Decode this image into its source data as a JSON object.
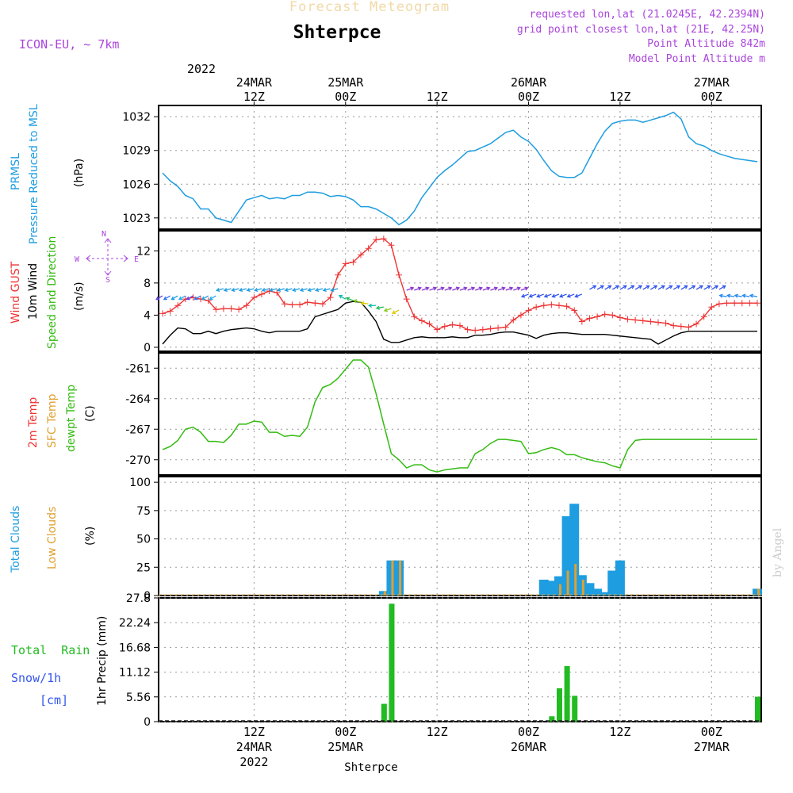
{
  "header": {
    "chart_title": "Forecast Meteogram",
    "station": "Shterpce",
    "model": "ICON-EU, ~ 7km",
    "requested": "requested lon,lat (21.0245E, 42.2394N)",
    "grid_point": "grid point closest lon,lat (21E, 42.25N)",
    "point_alt": "Point Altitude 842m",
    "model_alt": "Model Point Altitude m",
    "credit": "by Angel",
    "footer_station": "Shterpce"
  },
  "time_axis": {
    "year": "2022",
    "ticks_top": [
      {
        "h": 12,
        "date": "24MAR",
        "hour": "12Z"
      },
      {
        "h": 24,
        "date": "25MAR",
        "hour": "00Z"
      },
      {
        "h": 36,
        "date": "",
        "hour": "12Z"
      },
      {
        "h": 48,
        "date": "26MAR",
        "hour": "00Z"
      },
      {
        "h": 60,
        "date": "",
        "hour": "12Z"
      },
      {
        "h": 72,
        "date": "27MAR",
        "hour": "00Z"
      }
    ],
    "ticks_bottom": [
      {
        "h": 12,
        "hour": "12Z",
        "date": "24MAR",
        "year": "2022"
      },
      {
        "h": 24,
        "hour": "00Z",
        "date": "25MAR",
        "year": ""
      },
      {
        "h": 36,
        "hour": "12Z",
        "date": "",
        "year": ""
      },
      {
        "h": 48,
        "hour": "00Z",
        "date": "26MAR",
        "year": ""
      },
      {
        "h": 60,
        "hour": "12Z",
        "date": "",
        "year": ""
      },
      {
        "h": 72,
        "hour": "00Z",
        "date": "27MAR",
        "year": ""
      }
    ]
  },
  "colors": {
    "pressure": "#1e9de0",
    "gust": "#ee3333",
    "wind": "#000000",
    "dewpt": "#33bb11",
    "total_cloud": "#1e9de0",
    "low_cloud": "#e0a030",
    "precip": "#22bb22",
    "purple": "#aa44dd",
    "blue_lbl": "#3355ee"
  },
  "labels": {
    "prmsl": "PRMSL",
    "prmsl_long": "Pressure Reduced to MSL",
    "hpa": "(hPa)",
    "wind_gust": "Wind GUST",
    "wind10": "10m Wind",
    "speed_dir": "Speed and Direction",
    "ms": "(m/s)",
    "t2m": "2m Temp",
    "sfc": "SFC Temp",
    "dewpt": "dewpt Temp",
    "degc": "(C)",
    "total_clouds": "Total Clouds",
    "low_clouds": "Low Clouds",
    "pct": "(%)",
    "total_rain": "Total  Rain",
    "snow": "Snow/1h",
    "cm": "[cm]",
    "precip_axis": "1hr Precip (mm)",
    "compass_n": "N",
    "compass_s": "S",
    "compass_w": "W",
    "compass_e": "E"
  },
  "chart_data": [
    {
      "type": "line",
      "panel": "pressure",
      "ylabel": "Pressure Reduced to MSL (hPa)",
      "yticks": [
        1023,
        1026,
        1029,
        1032
      ],
      "ylim": [
        1022,
        1033
      ],
      "x_hours": [
        0,
        1,
        2,
        3,
        4,
        5,
        6,
        7,
        8,
        9,
        10,
        11,
        12,
        13,
        14,
        15,
        16,
        17,
        18,
        19,
        20,
        21,
        22,
        23,
        24,
        25,
        26,
        27,
        28,
        29,
        30,
        31,
        32,
        33,
        34,
        35,
        36,
        37,
        38,
        39,
        40,
        41,
        42,
        43,
        44,
        45,
        46,
        47,
        48,
        49,
        50,
        51,
        52,
        53,
        54,
        55,
        56,
        57,
        58,
        59,
        60,
        61,
        62,
        63,
        64,
        65,
        66,
        67,
        68,
        69,
        70,
        71,
        72,
        73,
        74,
        75,
        76,
        77,
        78
      ],
      "values": [
        1027.0,
        1026.3,
        1025.8,
        1025.0,
        1024.7,
        1023.8,
        1023.8,
        1023.0,
        1022.8,
        1022.6,
        1023.6,
        1024.6,
        1024.8,
        1025.0,
        1024.7,
        1024.8,
        1024.7,
        1025.0,
        1025.0,
        1025.3,
        1025.3,
        1025.2,
        1024.9,
        1025.0,
        1024.9,
        1024.6,
        1024.0,
        1024.0,
        1023.8,
        1023.4,
        1023.0,
        1022.4,
        1022.8,
        1023.6,
        1024.8,
        1025.7,
        1026.6,
        1027.2,
        1027.7,
        1028.3,
        1028.9,
        1029.0,
        1029.3,
        1029.6,
        1030.1,
        1030.6,
        1030.8,
        1030.2,
        1029.8,
        1029.1,
        1028.1,
        1027.2,
        1026.7,
        1026.6,
        1026.6,
        1027.0,
        1028.3,
        1029.6,
        1030.7,
        1031.4,
        1031.6,
        1031.7,
        1031.7,
        1031.5,
        1031.7,
        1031.9,
        1032.1,
        1032.4,
        1031.8,
        1030.2,
        1029.6,
        1029.4,
        1029.0,
        1028.7,
        1028.5,
        1028.3,
        1028.2,
        1028.1,
        1028.0
      ],
      "series_color_key": "pressure"
    },
    {
      "type": "line",
      "panel": "wind",
      "ylabel": "(m/s)",
      "yticks": [
        0,
        4,
        8,
        12
      ],
      "ylim": [
        -0.5,
        14.5
      ],
      "x_hours": [
        0,
        1,
        2,
        3,
        4,
        5,
        6,
        7,
        8,
        9,
        10,
        11,
        12,
        13,
        14,
        15,
        16,
        17,
        18,
        19,
        20,
        21,
        22,
        23,
        24,
        25,
        26,
        27,
        28,
        29,
        30,
        31,
        32,
        33,
        34,
        35,
        36,
        37,
        38,
        39,
        40,
        41,
        42,
        43,
        44,
        45,
        46,
        47,
        48,
        49,
        50,
        51,
        52,
        53,
        54,
        55,
        56,
        57,
        58,
        59,
        60,
        61,
        62,
        63,
        64,
        65,
        66,
        67,
        68,
        69,
        70,
        71,
        72,
        73,
        74,
        75,
        76,
        77,
        78
      ],
      "series": [
        {
          "name": "Wind GUST",
          "color_key": "gust",
          "values": [
            4.2,
            4.5,
            5.2,
            6.0,
            6.2,
            6.0,
            5.8,
            4.7,
            4.8,
            4.8,
            4.7,
            5.2,
            6.2,
            6.6,
            7.0,
            6.8,
            5.4,
            5.3,
            5.3,
            5.6,
            5.5,
            5.4,
            6.2,
            9.0,
            10.4,
            10.6,
            11.5,
            12.3,
            13.4,
            13.5,
            12.7,
            9.0,
            6.0,
            3.8,
            3.3,
            2.9,
            2.2,
            2.6,
            2.8,
            2.7,
            2.2,
            2.1,
            2.2,
            2.3,
            2.4,
            2.5,
            3.4,
            4.0,
            4.6,
            5.0,
            5.2,
            5.3,
            5.2,
            5.1,
            4.6,
            3.2,
            3.6,
            3.8,
            4.1,
            4.0,
            3.7,
            3.5,
            3.4,
            3.3,
            3.2,
            3.1,
            3.0,
            2.7,
            2.6,
            2.5,
            2.9,
            3.8,
            5.0,
            5.4,
            5.5,
            5.5,
            5.5,
            5.5,
            5.5
          ]
        },
        {
          "name": "10m Wind",
          "color_key": "wind",
          "values": [
            0.4,
            1.5,
            2.4,
            2.3,
            1.7,
            1.7,
            2.0,
            1.7,
            2.0,
            2.2,
            2.3,
            2.4,
            2.3,
            2.0,
            1.8,
            2.0,
            2.0,
            2.0,
            2.0,
            2.3,
            3.8,
            4.1,
            4.4,
            4.7,
            5.5,
            5.7,
            5.6,
            4.5,
            3.2,
            1.0,
            0.6,
            0.6,
            0.9,
            1.2,
            1.3,
            1.2,
            1.2,
            1.2,
            1.3,
            1.2,
            1.2,
            1.5,
            1.5,
            1.6,
            1.8,
            1.9,
            1.9,
            1.7,
            1.5,
            1.1,
            1.5,
            1.7,
            1.8,
            1.8,
            1.7,
            1.6,
            1.6,
            1.6,
            1.6,
            1.5,
            1.4,
            1.3,
            1.2,
            1.1,
            1.0,
            0.4,
            0.9,
            1.4,
            1.8,
            2.0,
            2.0,
            2.0,
            2.0,
            2.0,
            2.0,
            2.0,
            2.0,
            2.0,
            2.0
          ]
        }
      ]
    },
    {
      "type": "line",
      "panel": "temperature",
      "ylabel": "(C)",
      "yticks": [
        -261,
        -264,
        -267,
        -270
      ],
      "ylim": [
        -271.5,
        -259.5
      ],
      "series": [
        {
          "name": "dewpt Temp",
          "color_key": "dewpt",
          "x_hours": [
            0,
            1,
            2,
            3,
            4,
            5,
            6,
            7,
            8,
            9,
            10,
            11,
            12,
            13,
            14,
            15,
            16,
            17,
            18,
            19,
            20,
            21,
            22,
            23,
            24,
            25,
            26,
            27,
            28,
            29,
            30,
            31,
            32,
            33,
            34,
            35,
            36,
            37,
            38,
            39,
            40,
            41,
            42,
            43,
            44,
            45,
            46,
            47,
            48,
            49,
            50,
            51,
            52,
            53,
            54,
            55,
            56,
            57,
            58,
            59,
            60,
            61,
            62,
            63,
            64,
            65,
            66,
            67,
            68,
            69,
            70,
            71,
            72,
            73,
            74,
            75,
            76,
            77,
            78
          ],
          "values": [
            -269.0,
            -268.7,
            -268.1,
            -267.0,
            -266.8,
            -267.3,
            -268.2,
            -268.2,
            -268.3,
            -267.6,
            -266.5,
            -266.5,
            -266.2,
            -266.3,
            -267.3,
            -267.3,
            -267.7,
            -267.6,
            -267.7,
            -266.8,
            -264.3,
            -262.9,
            -262.6,
            -262.0,
            -261.1,
            -260.2,
            -260.2,
            -260.9,
            -263.5,
            -266.5,
            -269.4,
            -270.0,
            -270.8,
            -270.5,
            -270.5,
            -271.0,
            -271.2,
            -271.0,
            -270.9,
            -270.8,
            -270.8,
            -269.4,
            -269.0,
            -268.4,
            -268.0,
            -268.0,
            -268.1,
            -268.2,
            -269.4,
            -269.3,
            -269.0,
            -268.8,
            -269.0,
            -269.5,
            -269.5,
            -269.8,
            -270.0,
            -270.2,
            -270.3,
            -270.6,
            -270.8,
            -269.0,
            -268.1,
            -268.0,
            -268.0,
            -268.0,
            -268.0,
            -268.0,
            -268.0,
            -268.0,
            -268.0,
            -268.0,
            -268.0,
            -268.0,
            -268.0,
            -268.0,
            -268.0,
            -268.0,
            -268.0
          ]
        }
      ]
    },
    {
      "type": "bar",
      "panel": "clouds",
      "ylabel": "(%)",
      "yticks": [
        0,
        25,
        50,
        75,
        100
      ],
      "ylim": [
        0,
        105
      ],
      "series": [
        {
          "name": "Total Clouds",
          "color_key": "total_cloud",
          "points": [
            [
              29,
              4
            ],
            [
              30,
              31
            ],
            [
              31,
              31
            ],
            [
              50,
              14
            ],
            [
              51,
              13
            ],
            [
              52,
              17
            ],
            [
              53,
              70
            ],
            [
              54,
              81
            ],
            [
              55,
              18
            ],
            [
              56,
              11
            ],
            [
              57,
              6
            ],
            [
              58,
              3
            ],
            [
              59,
              22
            ],
            [
              60,
              31
            ],
            [
              78,
              6
            ]
          ]
        },
        {
          "name": "Low Clouds",
          "color_key": "low_cloud",
          "points": [
            [
              29,
              4
            ],
            [
              30,
              31
            ],
            [
              31,
              31
            ],
            [
              52,
              10
            ],
            [
              53,
              22
            ],
            [
              54,
              28
            ],
            [
              55,
              14
            ],
            [
              78,
              6
            ]
          ]
        }
      ]
    },
    {
      "type": "bar",
      "panel": "precip",
      "ylabel": "1hr Precip (mm)",
      "yticks": [
        0,
        5.56,
        11.12,
        16.68,
        22.24,
        27.8
      ],
      "ylim": [
        0,
        27.8
      ],
      "series": [
        {
          "name": "Total Rain",
          "color_key": "precip",
          "points": [
            [
              29,
              4.0
            ],
            [
              30,
              26.5
            ],
            [
              51,
              1.2
            ],
            [
              52,
              7.5
            ],
            [
              53,
              12.5
            ],
            [
              54,
              5.8
            ],
            [
              78,
              5.6
            ]
          ]
        }
      ]
    }
  ]
}
